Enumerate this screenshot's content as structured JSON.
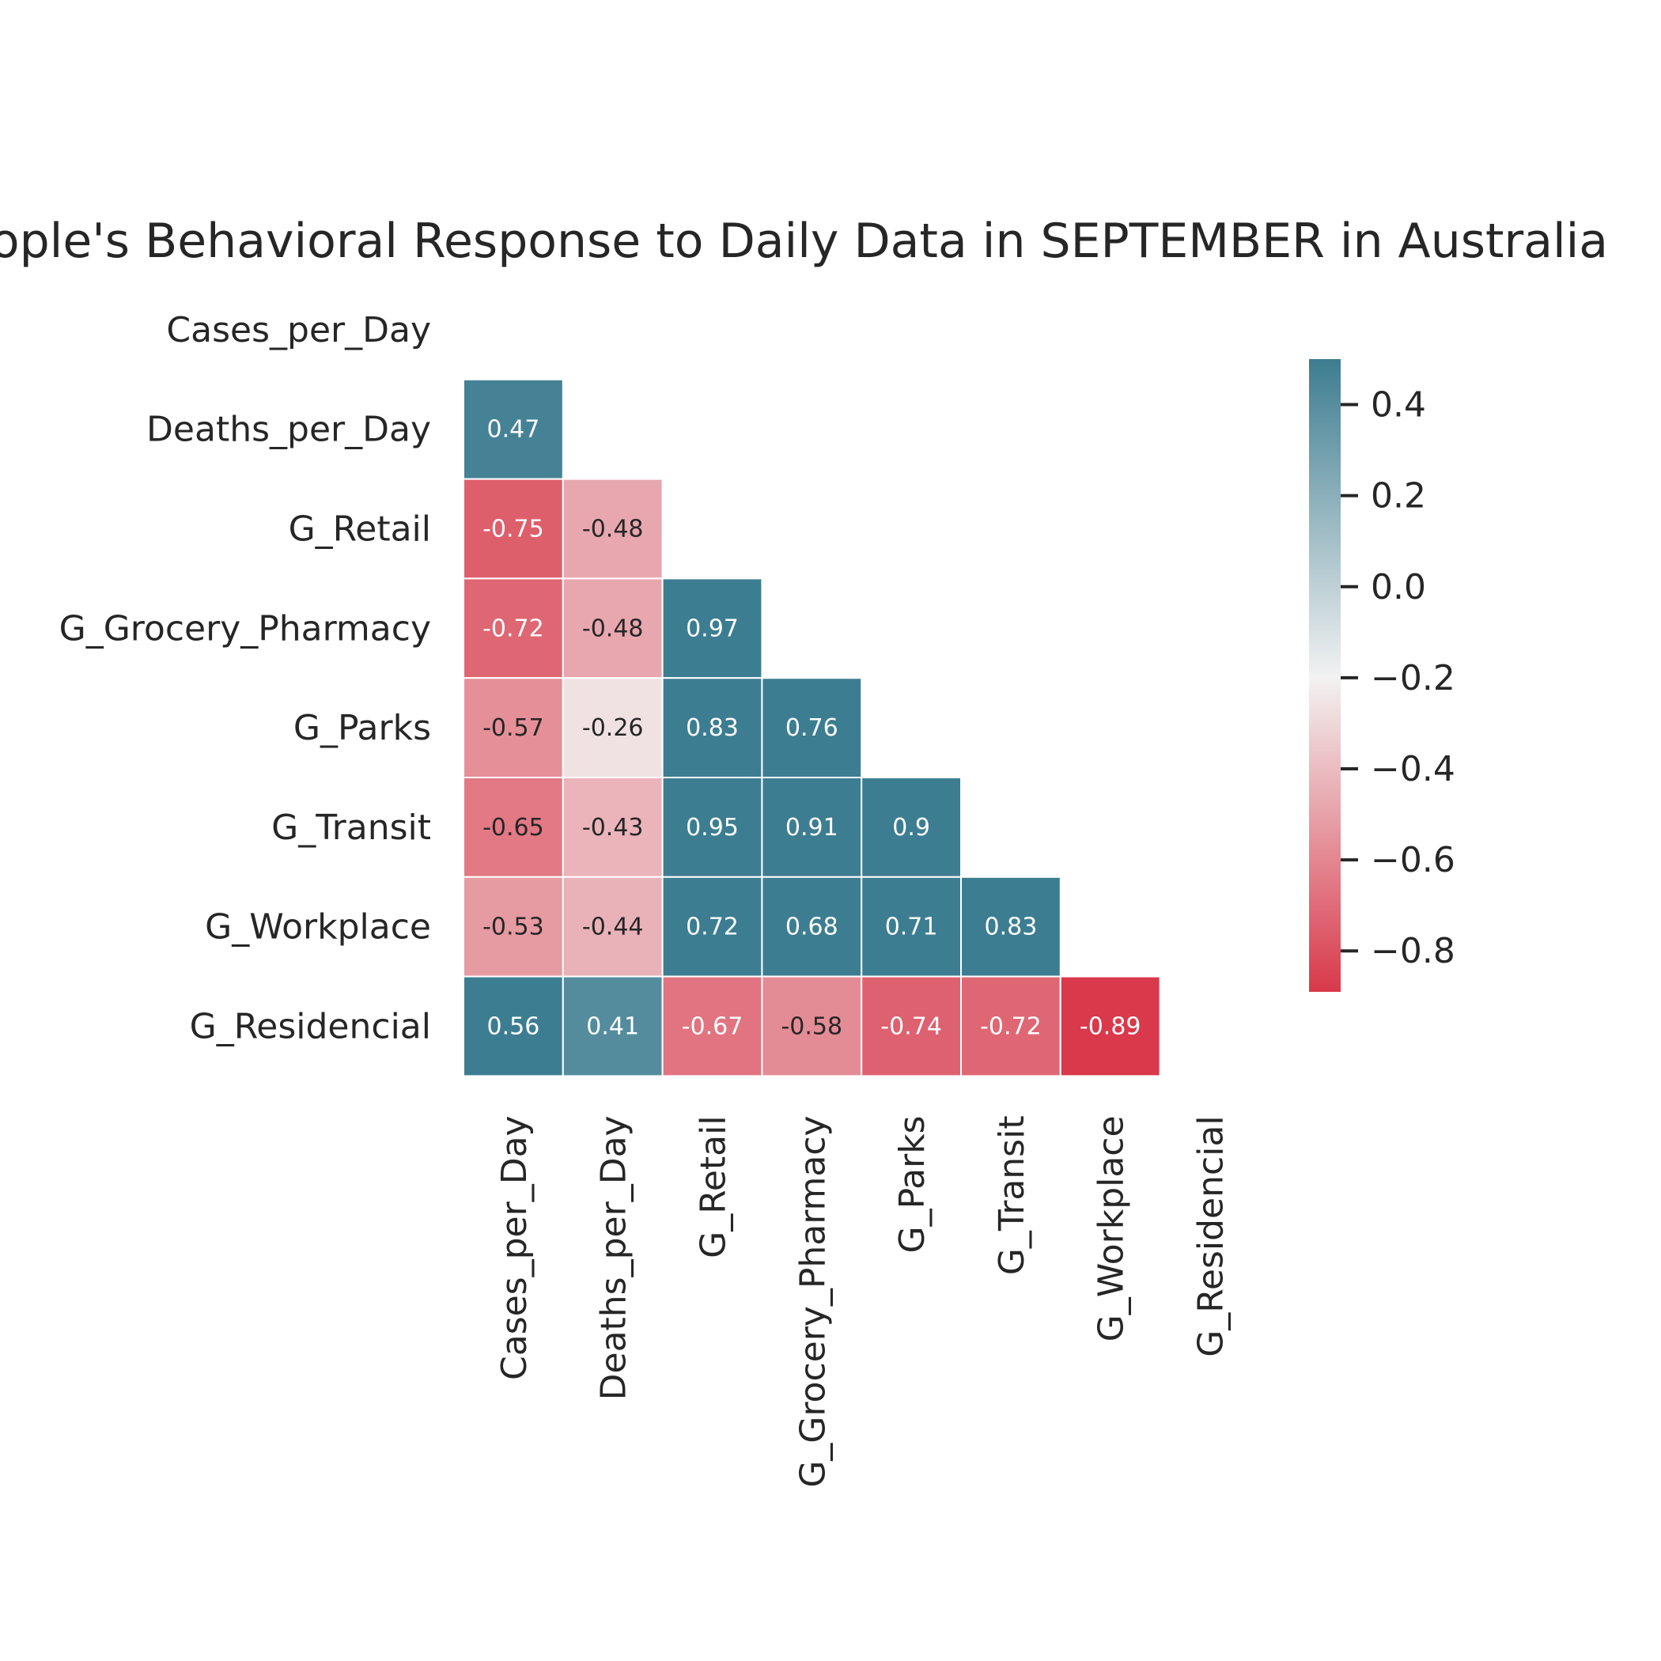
{
  "chart_data": {
    "type": "heatmap",
    "title": "People's Behavioral Response to Daily Data in SEPTEMBER in Australia",
    "rows": [
      "Cases_per_Day",
      "Deaths_per_Day",
      "G_Retail",
      "G_Grocery_Pharmacy",
      "G_Parks",
      "G_Transit",
      "G_Workplace",
      "G_Residencial"
    ],
    "columns": [
      "Cases_per_Day",
      "Deaths_per_Day",
      "G_Retail",
      "G_Grocery_Pharmacy",
      "G_Parks",
      "G_Transit",
      "G_Workplace",
      "G_Residencial"
    ],
    "mask": "upper triangle incl. diagonal",
    "values": [
      [
        null,
        null,
        null,
        null,
        null,
        null,
        null,
        null
      ],
      [
        0.47,
        null,
        null,
        null,
        null,
        null,
        null,
        null
      ],
      [
        -0.75,
        -0.48,
        null,
        null,
        null,
        null,
        null,
        null
      ],
      [
        -0.72,
        -0.48,
        0.97,
        null,
        null,
        null,
        null,
        null
      ],
      [
        -0.57,
        -0.26,
        0.83,
        0.76,
        null,
        null,
        null,
        null
      ],
      [
        -0.65,
        -0.43,
        0.95,
        0.91,
        0.9,
        null,
        null,
        null
      ],
      [
        -0.53,
        -0.44,
        0.72,
        0.68,
        0.71,
        0.83,
        null,
        null
      ],
      [
        0.56,
        0.41,
        -0.67,
        -0.58,
        -0.74,
        -0.72,
        -0.89,
        null
      ]
    ],
    "value_labels": [
      [
        null,
        null,
        null,
        null,
        null,
        null,
        null,
        null
      ],
      [
        "0.47",
        null,
        null,
        null,
        null,
        null,
        null,
        null
      ],
      [
        "-0.75",
        "-0.48",
        null,
        null,
        null,
        null,
        null,
        null
      ],
      [
        "-0.72",
        "-0.48",
        "0.97",
        null,
        null,
        null,
        null,
        null
      ],
      [
        "-0.57",
        "-0.26",
        "0.83",
        "0.76",
        null,
        null,
        null,
        null
      ],
      [
        "-0.65",
        "-0.43",
        "0.95",
        "0.91",
        "0.9",
        null,
        null,
        null
      ],
      [
        "-0.53",
        "-0.44",
        "0.72",
        "0.68",
        "0.71",
        "0.83",
        null,
        null
      ],
      [
        "0.56",
        "0.41",
        "-0.67",
        "-0.58",
        "-0.74",
        "-0.72",
        "-0.89",
        null
      ]
    ],
    "colorbar": {
      "vmin": -0.89,
      "vmax": 0.5,
      "ticks": [
        0.4,
        0.2,
        0.0,
        -0.2,
        -0.4,
        -0.6,
        -0.8
      ],
      "tick_labels": [
        "0.4",
        "0.2",
        "0.0",
        "−0.2",
        "−0.4",
        "−0.6",
        "−0.8"
      ]
    },
    "colormap": {
      "negative_end": "#d9394a",
      "center": "#f2f2f2",
      "positive_end": "#3d7d91",
      "center_value": -0.2
    },
    "grid": false,
    "legend": "colorbar at right"
  }
}
